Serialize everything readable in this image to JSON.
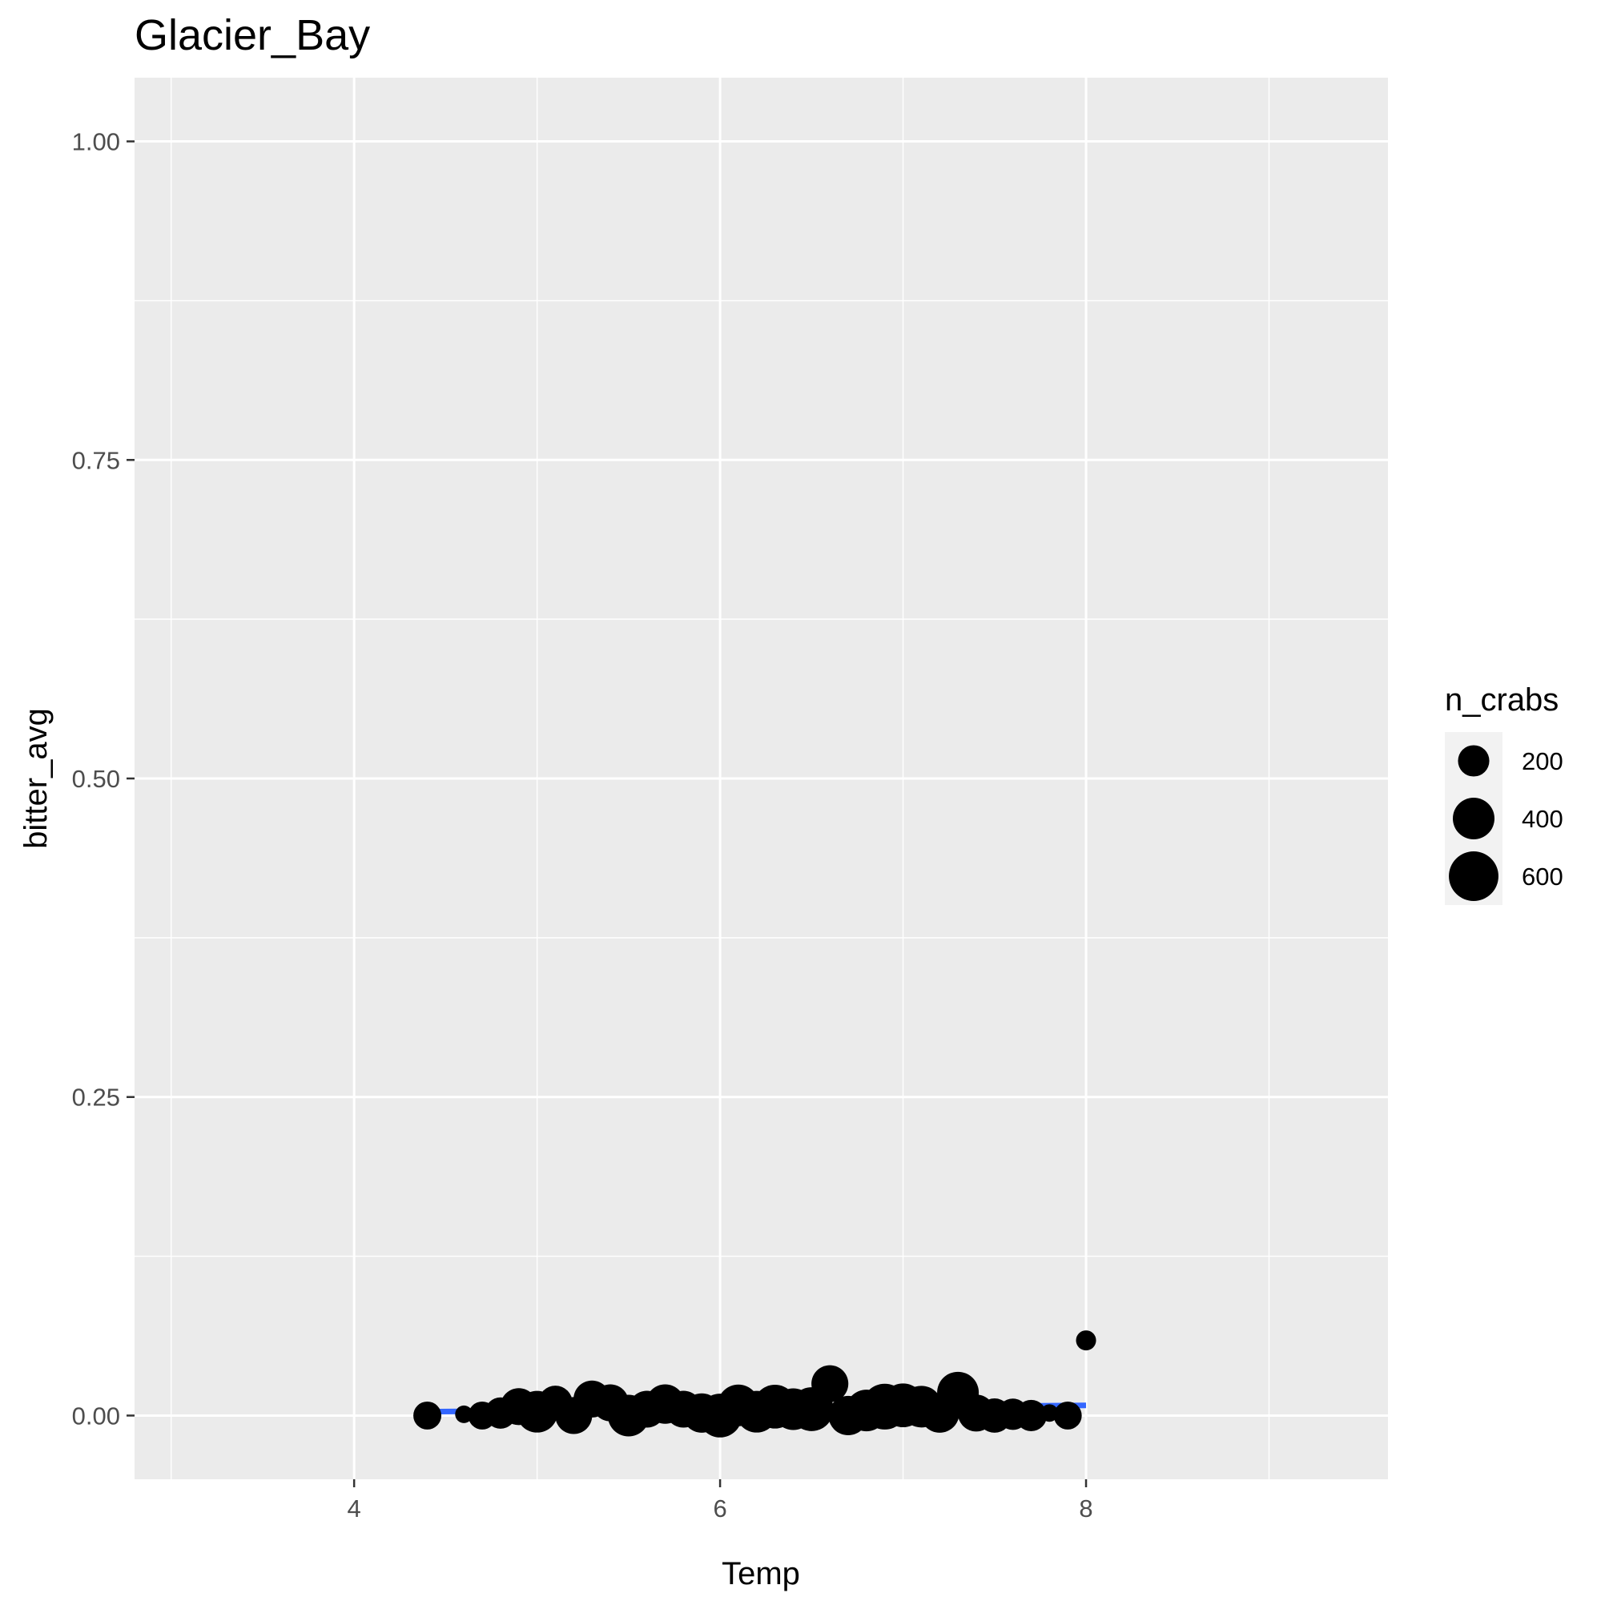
{
  "chart_data": {
    "type": "scatter",
    "title": "Glacier_Bay",
    "xlabel": "Temp",
    "ylabel": "bitter_avg",
    "xlim": [
      2.8,
      9.65
    ],
    "ylim": [
      -0.05,
      1.05
    ],
    "x_ticks": [
      4,
      6,
      8
    ],
    "x_tick_labels": [
      "4",
      "6",
      "8"
    ],
    "y_ticks": [
      0.0,
      0.25,
      0.5,
      0.75,
      1.0
    ],
    "y_tick_labels": [
      "0.00",
      "0.25",
      "0.50",
      "0.75",
      "1.00"
    ],
    "x_minor_gridlines": [
      3,
      5,
      7,
      9
    ],
    "y_minor_gridlines": [
      0.125,
      0.375,
      0.625,
      0.875
    ],
    "grid": true,
    "size_variable": "n_crabs",
    "points": [
      {
        "x": 4.4,
        "y": 0.0,
        "size": 150
      },
      {
        "x": 4.6,
        "y": 0.001,
        "size": 40
      },
      {
        "x": 4.7,
        "y": 0.0,
        "size": 150
      },
      {
        "x": 4.8,
        "y": 0.002,
        "size": 200
      },
      {
        "x": 4.9,
        "y": 0.007,
        "size": 300
      },
      {
        "x": 5.0,
        "y": 0.003,
        "size": 400
      },
      {
        "x": 5.1,
        "y": 0.01,
        "size": 250
      },
      {
        "x": 5.2,
        "y": 0.0,
        "size": 300
      },
      {
        "x": 5.3,
        "y": 0.013,
        "size": 300
      },
      {
        "x": 5.4,
        "y": 0.01,
        "size": 300
      },
      {
        "x": 5.5,
        "y": 0.0,
        "size": 400
      },
      {
        "x": 5.6,
        "y": 0.005,
        "size": 300
      },
      {
        "x": 5.7,
        "y": 0.009,
        "size": 350
      },
      {
        "x": 5.8,
        "y": 0.005,
        "size": 300
      },
      {
        "x": 5.9,
        "y": 0.002,
        "size": 350
      },
      {
        "x": 6.0,
        "y": 0.0,
        "size": 450
      },
      {
        "x": 6.1,
        "y": 0.008,
        "size": 400
      },
      {
        "x": 6.2,
        "y": 0.003,
        "size": 400
      },
      {
        "x": 6.3,
        "y": 0.007,
        "size": 450
      },
      {
        "x": 6.4,
        "y": 0.005,
        "size": 400
      },
      {
        "x": 6.5,
        "y": 0.005,
        "size": 450
      },
      {
        "x": 6.6,
        "y": 0.025,
        "size": 300
      },
      {
        "x": 6.7,
        "y": 0.0,
        "size": 350
      },
      {
        "x": 6.8,
        "y": 0.004,
        "size": 400
      },
      {
        "x": 6.9,
        "y": 0.007,
        "size": 500
      },
      {
        "x": 7.0,
        "y": 0.008,
        "size": 450
      },
      {
        "x": 7.1,
        "y": 0.007,
        "size": 400
      },
      {
        "x": 7.2,
        "y": 0.002,
        "size": 350
      },
      {
        "x": 7.3,
        "y": 0.018,
        "size": 400
      },
      {
        "x": 7.4,
        "y": 0.002,
        "size": 300
      },
      {
        "x": 7.5,
        "y": 0.0,
        "size": 250
      },
      {
        "x": 7.6,
        "y": 0.001,
        "size": 200
      },
      {
        "x": 7.7,
        "y": 0.0,
        "size": 200
      },
      {
        "x": 7.8,
        "y": 0.002,
        "size": 40
      },
      {
        "x": 7.9,
        "y": 0.0,
        "size": 150
      },
      {
        "x": 8.0,
        "y": 0.059,
        "size": 60
      }
    ],
    "fit_line": {
      "x": [
        4.4,
        8.0
      ],
      "y": [
        0.003,
        0.008
      ],
      "color": "#3366ff"
    },
    "legend": {
      "title": "n_crabs",
      "position": "right",
      "entries": [
        {
          "label": "200",
          "value": 200
        },
        {
          "label": "400",
          "value": 400
        },
        {
          "label": "600",
          "value": 600
        }
      ]
    },
    "colors": {
      "panel_background": "#ebebeb",
      "grid": "#ffffff",
      "points": "#000000",
      "fit_line": "#3366ff"
    }
  }
}
